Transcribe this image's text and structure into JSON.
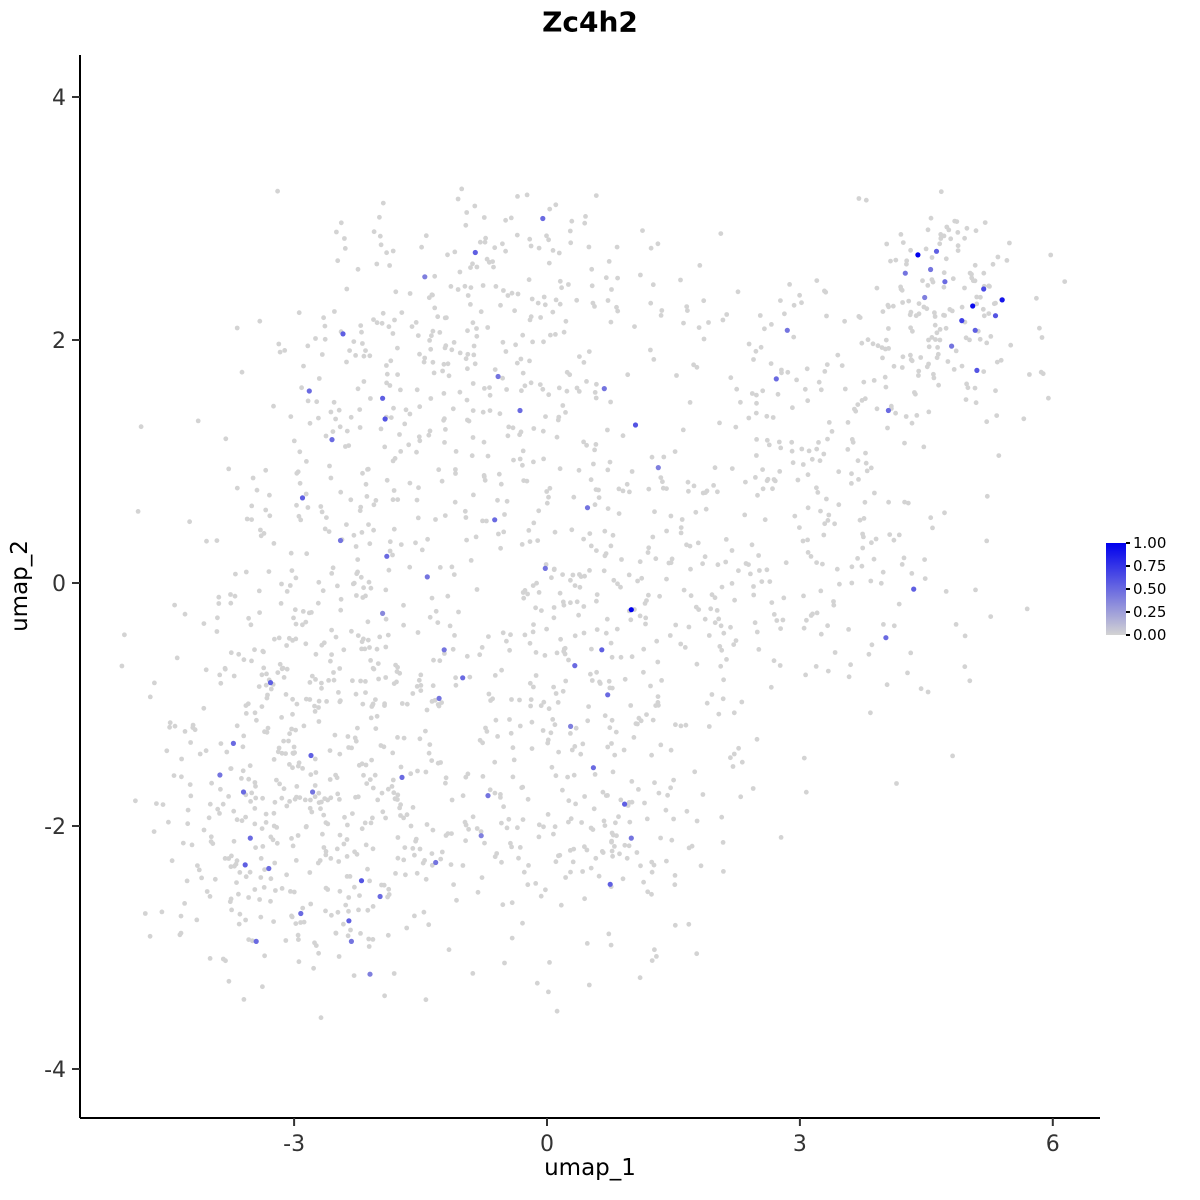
{
  "chart_data": {
    "type": "scatter",
    "title": "Zc4h2",
    "xlabel": "umap_1",
    "ylabel": "umap_2",
    "xlim": [
      -5.45,
      6.55
    ],
    "ylim": [
      -4.35,
      4.35
    ],
    "x_ticks": [
      -3,
      0,
      3,
      6
    ],
    "y_ticks": [
      -4,
      -2,
      0,
      2,
      4
    ],
    "grid": false,
    "point_radius": 2.4,
    "seed": 42,
    "legend": {
      "position": "right",
      "ticks": [
        "1.00",
        "0.75",
        "0.50",
        "0.25",
        "0.00"
      ],
      "high_color": "#0000EE",
      "low_color": "#D3D3D3"
    },
    "background_clusters": [
      {
        "cx": -2.5,
        "cy": -2.0,
        "sx": 1.0,
        "sy": 0.65,
        "n": 330
      },
      {
        "cx": -2.7,
        "cy": -0.4,
        "sx": 0.85,
        "sy": 0.85,
        "n": 260
      },
      {
        "cx": -1.4,
        "cy": 1.6,
        "sx": 1.0,
        "sy": 0.75,
        "n": 250
      },
      {
        "cx": -0.1,
        "cy": 2.5,
        "sx": 0.95,
        "sy": 0.38,
        "n": 100
      },
      {
        "cx": 0.3,
        "cy": -0.7,
        "sx": 0.75,
        "sy": 1.05,
        "n": 230
      },
      {
        "cx": 0.7,
        "cy": -2.2,
        "sx": 0.75,
        "sy": 0.5,
        "n": 100
      },
      {
        "cx": 1.2,
        "cy": 0.6,
        "sx": 1.1,
        "sy": 1.0,
        "n": 90
      },
      {
        "cx": 2.3,
        "cy": 0.3,
        "sx": 0.85,
        "sy": 0.85,
        "n": 120
      },
      {
        "cx": 3.3,
        "cy": 1.3,
        "sx": 0.8,
        "sy": 0.75,
        "n": 130
      },
      {
        "cx": 4.7,
        "cy": 2.3,
        "sx": 0.55,
        "sy": 0.42,
        "n": 150
      },
      {
        "cx": -3.9,
        "cy": -1.6,
        "sx": 0.45,
        "sy": 0.8,
        "n": 70
      },
      {
        "cx": 4.2,
        "cy": 0.2,
        "sx": 0.6,
        "sy": 0.9,
        "n": 40
      },
      {
        "cx": 2.0,
        "cy": -1.0,
        "sx": 0.7,
        "sy": 0.6,
        "n": 40
      }
    ],
    "expressing_points_xyv": [
      [
        4.4,
        2.7,
        1.0
      ],
      [
        4.62,
        2.73,
        0.55
      ],
      [
        4.55,
        2.58,
        0.45
      ],
      [
        4.72,
        2.48,
        0.5
      ],
      [
        5.18,
        2.42,
        0.65
      ],
      [
        5.05,
        2.28,
        0.95
      ],
      [
        5.4,
        2.33,
        0.9
      ],
      [
        5.32,
        2.2,
        0.6
      ],
      [
        4.92,
        2.16,
        0.7
      ],
      [
        5.08,
        2.08,
        0.55
      ],
      [
        4.8,
        1.95,
        0.45
      ],
      [
        5.1,
        1.75,
        0.6
      ],
      [
        4.48,
        2.35,
        0.4
      ],
      [
        4.25,
        2.55,
        0.45
      ],
      [
        4.05,
        1.42,
        0.5
      ],
      [
        2.85,
        2.08,
        0.45
      ],
      [
        2.72,
        1.68,
        0.5
      ],
      [
        4.35,
        -0.05,
        0.55
      ],
      [
        4.02,
        -0.45,
        0.5
      ],
      [
        -0.05,
        3.0,
        0.5
      ],
      [
        -0.85,
        2.72,
        0.55
      ],
      [
        -1.45,
        2.52,
        0.4
      ],
      [
        -2.42,
        2.05,
        0.55
      ],
      [
        -2.82,
        1.58,
        0.5
      ],
      [
        -1.95,
        1.52,
        0.55
      ],
      [
        -1.92,
        1.35,
        0.6
      ],
      [
        -2.55,
        1.18,
        0.5
      ],
      [
        -0.58,
        1.7,
        0.45
      ],
      [
        -0.32,
        1.42,
        0.5
      ],
      [
        0.68,
        1.6,
        0.45
      ],
      [
        1.05,
        1.3,
        0.6
      ],
      [
        -2.9,
        0.7,
        0.55
      ],
      [
        -2.45,
        0.35,
        0.45
      ],
      [
        -1.9,
        0.22,
        0.5
      ],
      [
        -1.42,
        0.05,
        0.45
      ],
      [
        -0.62,
        0.52,
        0.5
      ],
      [
        -0.02,
        0.12,
        0.45
      ],
      [
        0.48,
        0.62,
        0.45
      ],
      [
        1.0,
        -0.22,
        1.0
      ],
      [
        0.65,
        -0.55,
        0.55
      ],
      [
        0.33,
        -0.68,
        0.5
      ],
      [
        -1.22,
        -0.55,
        0.45
      ],
      [
        -1.0,
        -0.78,
        0.5
      ],
      [
        -3.28,
        -0.82,
        0.55
      ],
      [
        -1.28,
        -0.95,
        0.45
      ],
      [
        0.72,
        -0.92,
        0.5
      ],
      [
        0.28,
        -1.18,
        0.4
      ],
      [
        -1.95,
        -0.25,
        0.35
      ],
      [
        -3.72,
        -1.32,
        0.5
      ],
      [
        -3.88,
        -1.58,
        0.45
      ],
      [
        -3.6,
        -1.72,
        0.5
      ],
      [
        -2.8,
        -1.42,
        0.55
      ],
      [
        -2.78,
        -1.72,
        0.45
      ],
      [
        -1.72,
        -1.6,
        0.5
      ],
      [
        -0.7,
        -1.75,
        0.45
      ],
      [
        0.55,
        -1.52,
        0.5
      ],
      [
        0.92,
        -1.82,
        0.55
      ],
      [
        1.0,
        -2.1,
        0.45
      ],
      [
        -3.52,
        -2.1,
        0.5
      ],
      [
        -3.58,
        -2.32,
        0.55
      ],
      [
        -3.3,
        -2.35,
        0.5
      ],
      [
        -2.2,
        -2.45,
        0.6
      ],
      [
        -1.32,
        -2.3,
        0.45
      ],
      [
        -0.78,
        -2.08,
        0.4
      ],
      [
        0.75,
        -2.48,
        0.55
      ],
      [
        -2.92,
        -2.72,
        0.5
      ],
      [
        -2.35,
        -2.78,
        0.55
      ],
      [
        -3.45,
        -2.95,
        0.5
      ],
      [
        -2.32,
        -2.95,
        0.45
      ],
      [
        -2.1,
        -3.22,
        0.4
      ],
      [
        -1.98,
        -2.58,
        0.5
      ],
      [
        1.32,
        0.95,
        0.4
      ]
    ]
  }
}
